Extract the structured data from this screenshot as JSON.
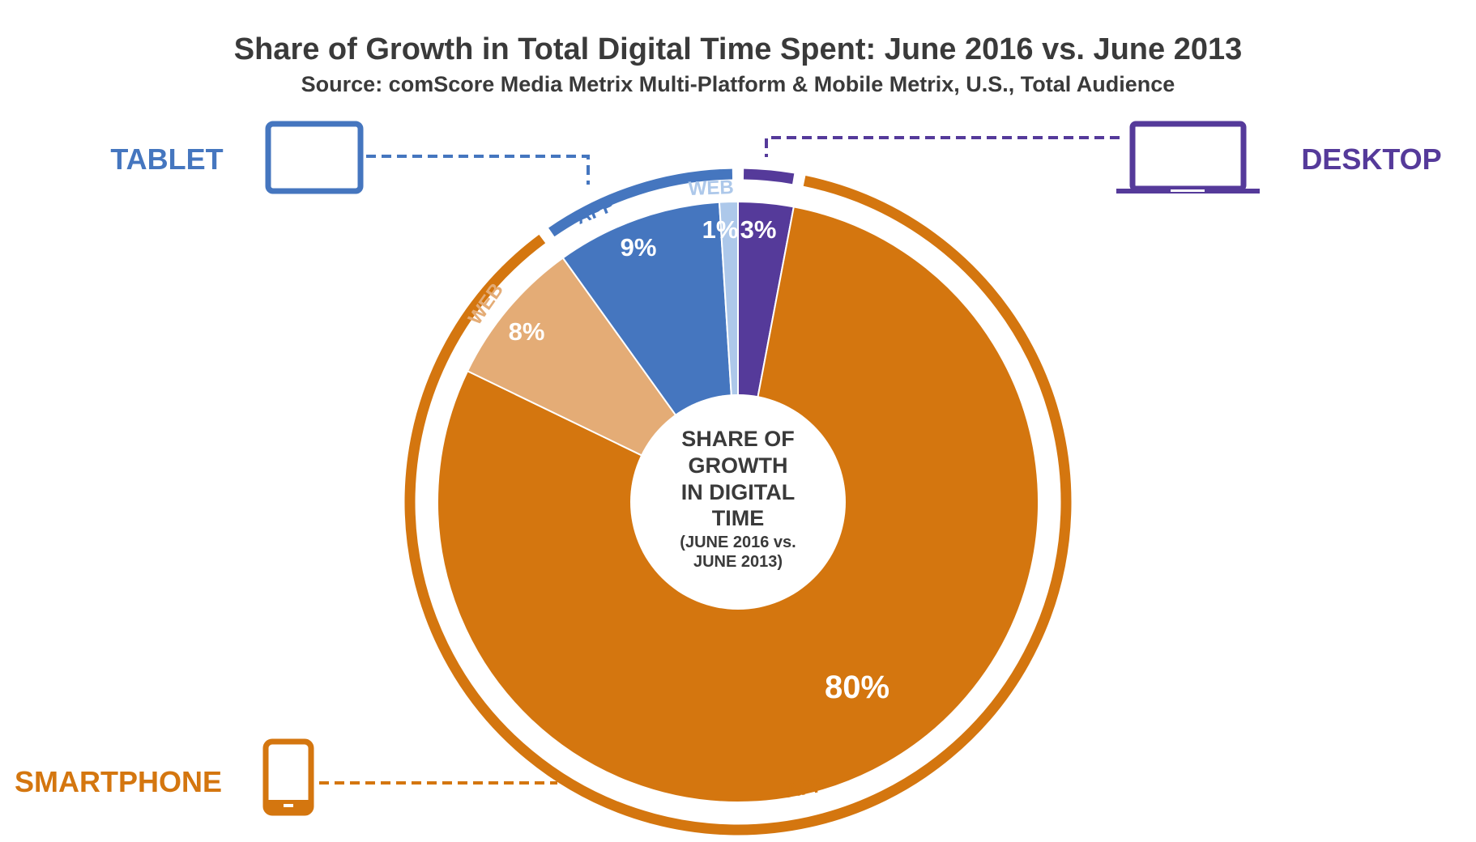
{
  "title": "Share of Growth in Total Digital Time Spent: June 2016 vs. June 2013",
  "subtitle": "Source: comScore Media Metrix Multi-Platform & Mobile Metrix, U.S., Total Audience",
  "center_label": {
    "lines": [
      "SHARE OF",
      "GROWTH",
      "IN DIGITAL",
      "TIME"
    ],
    "sub_lines": [
      "(JUNE 2016 vs.",
      "JUNE 2013)"
    ]
  },
  "devices": {
    "tablet": "TABLET",
    "desktop": "DESKTOP",
    "smartphone": "SMARTPHONE"
  },
  "ring_labels": {
    "tablet_app": "APP",
    "tablet_web": "WEB",
    "smartphone_web": "WEB",
    "smartphone_app": "APP"
  },
  "colors": {
    "smartphone_app": "#d4760f",
    "smartphone_web": "#e4ac76",
    "tablet_app": "#4576bf",
    "tablet_web": "#adc8ea",
    "desktop": "#553a9a",
    "title": "#3a3a3a"
  },
  "chart_data": {
    "type": "pie",
    "title": "Share of Growth in Total Digital Time Spent: June 2016 vs. June 2013",
    "subtitle": "Source: comScore Media Metrix Multi-Platform & Mobile Metrix, U.S., Total Audience",
    "slices": [
      {
        "device": "DESKTOP",
        "platform": "",
        "value": 3,
        "label": "3%",
        "color": "#553a9a"
      },
      {
        "device": "SMARTPHONE",
        "platform": "APP",
        "value": 80,
        "label": "80%",
        "color": "#d4760f"
      },
      {
        "device": "SMARTPHONE",
        "platform": "WEB",
        "value": 8,
        "label": "8%",
        "color": "#e4ac76"
      },
      {
        "device": "TABLET",
        "platform": "APP",
        "value": 9,
        "label": "9%",
        "color": "#4576bf"
      },
      {
        "device": "TABLET",
        "platform": "WEB",
        "value": 1,
        "label": "1%",
        "color": "#adc8ea"
      }
    ]
  }
}
